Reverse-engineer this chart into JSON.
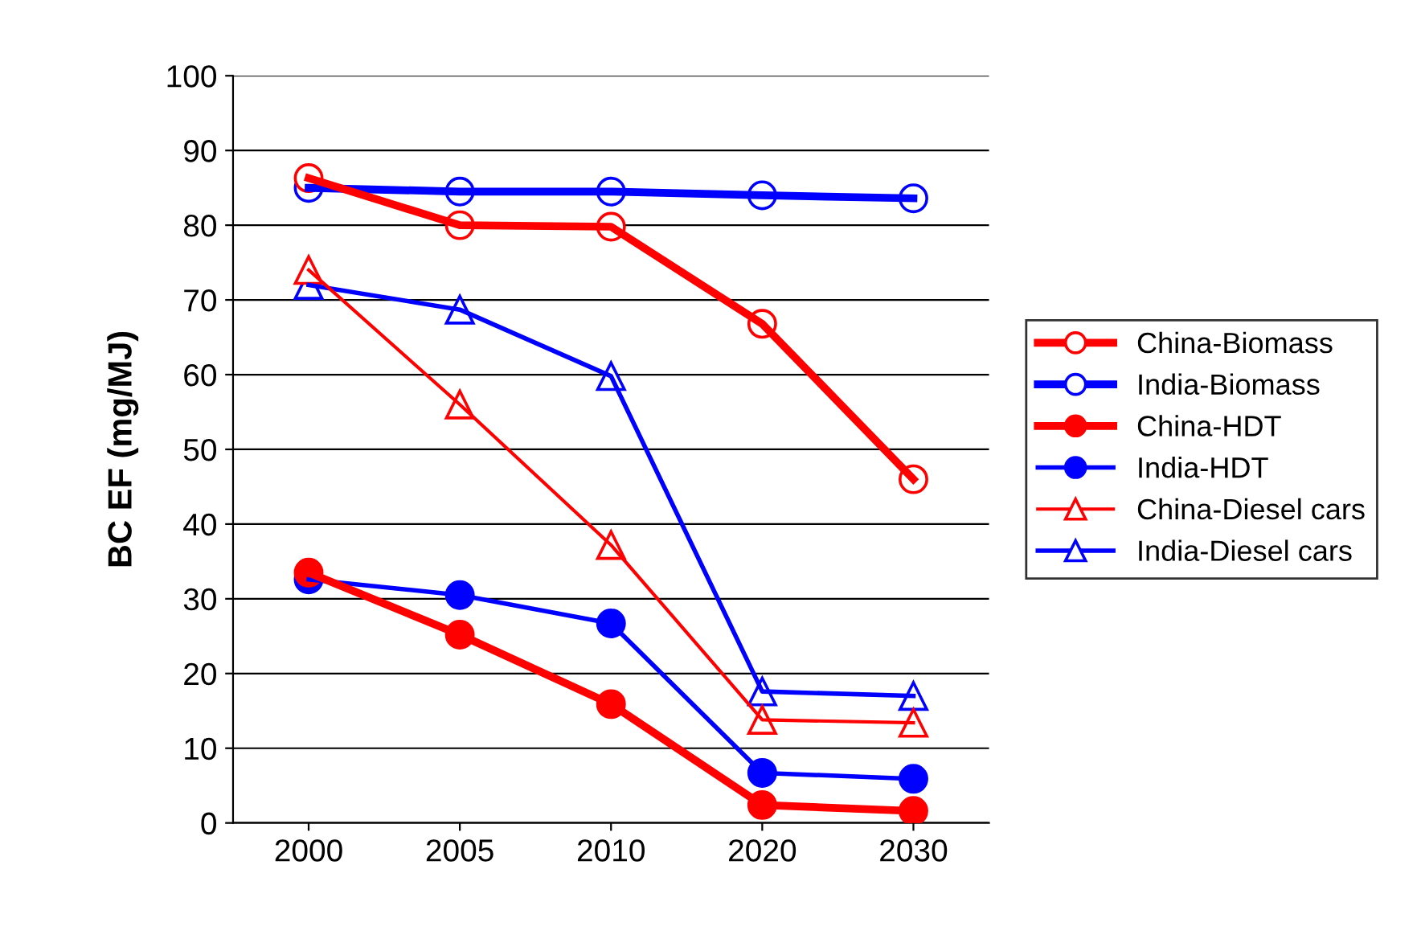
{
  "chart_data": {
    "type": "line",
    "ylabel": "BC EF (mg/MJ)",
    "categories": [
      "2000",
      "2005",
      "2010",
      "2020",
      "2030"
    ],
    "ylim": [
      0,
      100
    ],
    "yticks": [
      0,
      10,
      20,
      30,
      40,
      50,
      60,
      70,
      80,
      90,
      100
    ],
    "grid": "y",
    "legend": "right",
    "series": [
      {
        "name": "China-Biomass",
        "color": "#ff0000",
        "marker": "circle",
        "values": [
          86.3,
          80,
          79.8,
          66.8,
          46
        ]
      },
      {
        "name": "India-Biomass",
        "color": "#0000ff",
        "marker": "circle",
        "values": [
          85,
          84.5,
          84.5,
          84,
          83.6
        ]
      },
      {
        "name": "China-HDT",
        "color": "#ff0000",
        "marker": "circle",
        "values": [
          33.5,
          25.2,
          15.9,
          2.4,
          1.6
        ]
      },
      {
        "name": "India-HDT",
        "color": "#0000ff",
        "marker": "circle",
        "values": [
          32.6,
          30.5,
          26.7,
          6.7,
          5.9
        ]
      },
      {
        "name": "China-Diesel cars",
        "color": "#ff0000",
        "marker": "triangle",
        "values": [
          74,
          56,
          37.2,
          13.8,
          13.4
        ]
      },
      {
        "name": "India-Diesel cars",
        "color": "#0000ff",
        "marker": "triangle",
        "values": [
          72,
          68.7,
          59.8,
          17.6,
          17
        ]
      }
    ]
  }
}
